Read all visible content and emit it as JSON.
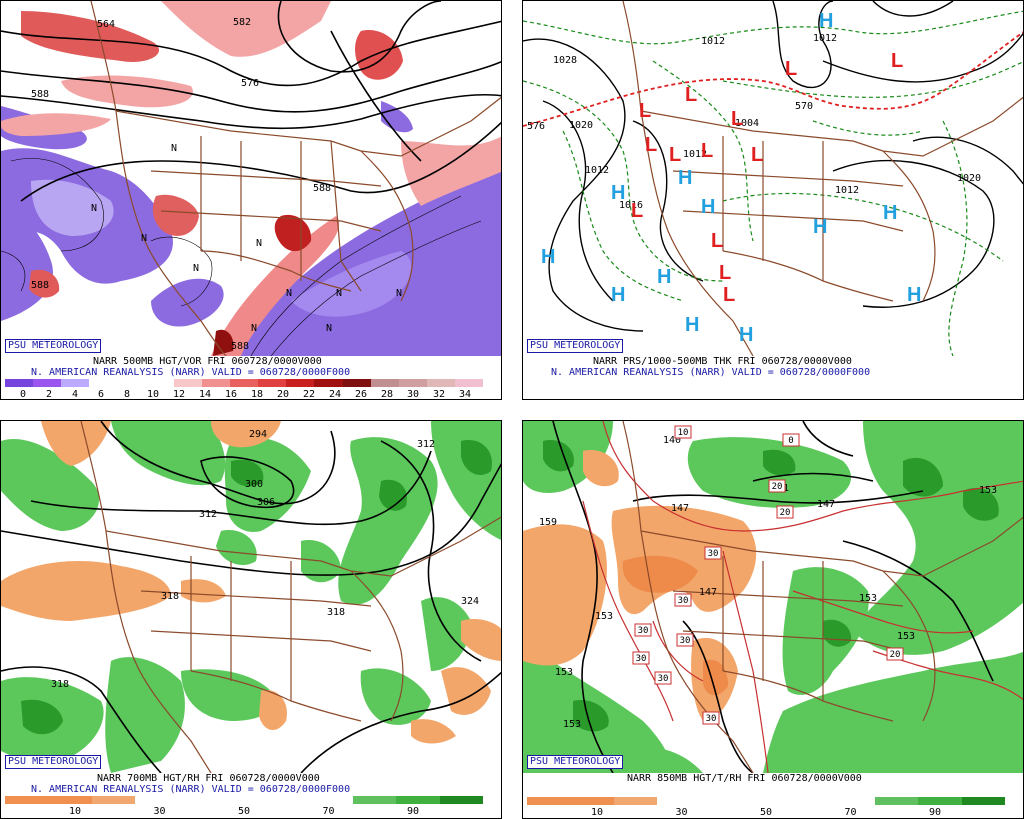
{
  "panels": [
    {
      "id": "tl",
      "badge": "PSU METEOROLOGY",
      "caption1": "NARR 500MB HGT/VOR FRI 060728/0000V000",
      "caption2": "N. AMERICAN REANALYSIS (NARR) VALID = 060728/0000F000",
      "colorbar": [
        "#7744dd",
        "#9955ee",
        "#bbaaff",
        "#ffffff",
        "#ffffff",
        "#ffffff",
        "#f8c8c8",
        "#f09090",
        "#e86060",
        "#e04040",
        "#c82020",
        "#a01010",
        "#801010",
        "#c09090",
        "#d0a0a0",
        "#e0b8b8",
        "#f0c0d0"
      ],
      "ticks": [
        "0",
        "2",
        "4",
        "6",
        "8",
        "10",
        "12",
        "14",
        "16",
        "18",
        "20",
        "22",
        "24",
        "26",
        "28",
        "30",
        "32",
        "34"
      ],
      "contour_labels": [
        "564",
        "582",
        "576",
        "588",
        "588",
        "588",
        "588"
      ],
      "markers": [
        "N",
        "N",
        "N",
        "N",
        "N",
        "N",
        "N",
        "N",
        "N",
        "N"
      ]
    },
    {
      "id": "tr",
      "badge": "PSU METEOROLOGY",
      "caption1": "NARR PRS/1000-500MB THK FRI 060728/0000V000",
      "caption2": "N. AMERICAN REANALYSIS (NARR) VALID = 060728/0000F000",
      "contour_labels": [
        "1028",
        "1012",
        "1012",
        "1020",
        "576",
        "1012",
        "1004",
        "570",
        "1020",
        "1012",
        "1012",
        "1016"
      ],
      "highs": [
        "H",
        "H",
        "H",
        "H",
        "H",
        "H",
        "H",
        "H",
        "H",
        "H",
        "H",
        "H"
      ],
      "lows": [
        "L",
        "L",
        "L",
        "L",
        "L",
        "L",
        "L",
        "L",
        "L",
        "L",
        "L",
        "L",
        "L"
      ]
    },
    {
      "id": "bl",
      "badge": "PSU METEOROLOGY",
      "caption1": "NARR 700MB HGT/RH FRI 060728/0000V000",
      "caption2": "N. AMERICAN REANALYSIS (NARR) VALID = 060728/0000F000",
      "colorbar": [
        "#f09050",
        "#f09050",
        "#f0a870",
        "#ffffff",
        "#ffffff",
        "#ffffff",
        "#ffffff",
        "#ffffff",
        "#60c060",
        "#40b040",
        "#208820"
      ],
      "ticks": [
        "10",
        "30",
        "50",
        "70",
        "90"
      ],
      "contour_labels": [
        "294",
        "300",
        "306",
        "312",
        "312",
        "318",
        "318",
        "324",
        "318"
      ]
    },
    {
      "id": "br",
      "badge": "PSU METEOROLOGY",
      "caption1": "NARR 850MB HGT/T/RH FRI 060728/0000V000",
      "colorbar": [
        "#f09050",
        "#f09050",
        "#f0a870",
        "#ffffff",
        "#ffffff",
        "#ffffff",
        "#ffffff",
        "#ffffff",
        "#60c060",
        "#40b040",
        "#208820"
      ],
      "ticks": [
        "10",
        "30",
        "50",
        "70",
        "90"
      ],
      "contour_labels": [
        "140",
        "147",
        "147",
        "141",
        "159",
        "153",
        "153",
        "153",
        "147",
        "153",
        "153",
        "153"
      ],
      "temp_boxes": [
        "10",
        "20",
        "30",
        "30",
        "30",
        "30",
        "30",
        "20",
        "20",
        "30",
        "30",
        "0"
      ]
    }
  ]
}
